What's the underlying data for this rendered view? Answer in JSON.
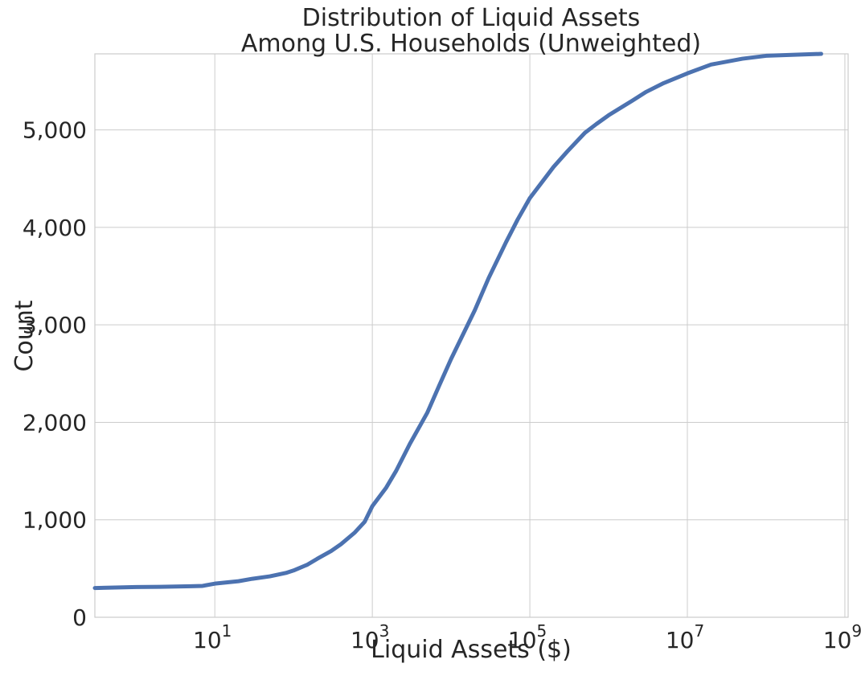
{
  "chart_data": {
    "type": "line",
    "title": [
      "Distribution of Liquid Assets",
      "Among U.S. Households (Unweighted)"
    ],
    "xlabel": "Liquid Assets ($)",
    "ylabel": "Count",
    "xscale": "log",
    "xlim": [
      0.3,
      1100000000.0
    ],
    "ylim": [
      0,
      5780
    ],
    "grid": true,
    "x_ticks": [
      {
        "value": 10,
        "base": "10",
        "exp": "1"
      },
      {
        "value": 1000,
        "base": "10",
        "exp": "3"
      },
      {
        "value": 100000,
        "base": "10",
        "exp": "5"
      },
      {
        "value": 10000000,
        "base": "10",
        "exp": "7"
      },
      {
        "value": 1000000000,
        "base": "10",
        "exp": "9"
      }
    ],
    "y_ticks": [
      {
        "value": 0,
        "label": "0"
      },
      {
        "value": 1000,
        "label": "1,000"
      },
      {
        "value": 2000,
        "label": "2,000"
      },
      {
        "value": 3000,
        "label": "3,000"
      },
      {
        "value": 4000,
        "label": "4,000"
      },
      {
        "value": 5000,
        "label": "5,000"
      }
    ],
    "series": [
      {
        "color": "#4c72b0",
        "points": [
          [
            0.3,
            300
          ],
          [
            1,
            310
          ],
          [
            2,
            312
          ],
          [
            5,
            318
          ],
          [
            7,
            322
          ],
          [
            10,
            345
          ],
          [
            20,
            370
          ],
          [
            30,
            395
          ],
          [
            50,
            420
          ],
          [
            80,
            455
          ],
          [
            100,
            480
          ],
          [
            150,
            540
          ],
          [
            200,
            600
          ],
          [
            300,
            680
          ],
          [
            400,
            750
          ],
          [
            600,
            870
          ],
          [
            800,
            980
          ],
          [
            1000,
            1140
          ],
          [
            1500,
            1330
          ],
          [
            2000,
            1500
          ],
          [
            3000,
            1780
          ],
          [
            5000,
            2100
          ],
          [
            7000,
            2370
          ],
          [
            10000,
            2650
          ],
          [
            20000,
            3150
          ],
          [
            30000,
            3480
          ],
          [
            50000,
            3850
          ],
          [
            70000,
            4080
          ],
          [
            100000,
            4300
          ],
          [
            200000,
            4620
          ],
          [
            300000,
            4780
          ],
          [
            500000,
            4970
          ],
          [
            700000,
            5060
          ],
          [
            1000000,
            5150
          ],
          [
            2000000,
            5300
          ],
          [
            3000000,
            5390
          ],
          [
            5000000,
            5480
          ],
          [
            10000000,
            5580
          ],
          [
            20000000,
            5670
          ],
          [
            50000000,
            5730
          ],
          [
            100000000,
            5760
          ],
          [
            500000000,
            5780
          ]
        ]
      }
    ]
  }
}
